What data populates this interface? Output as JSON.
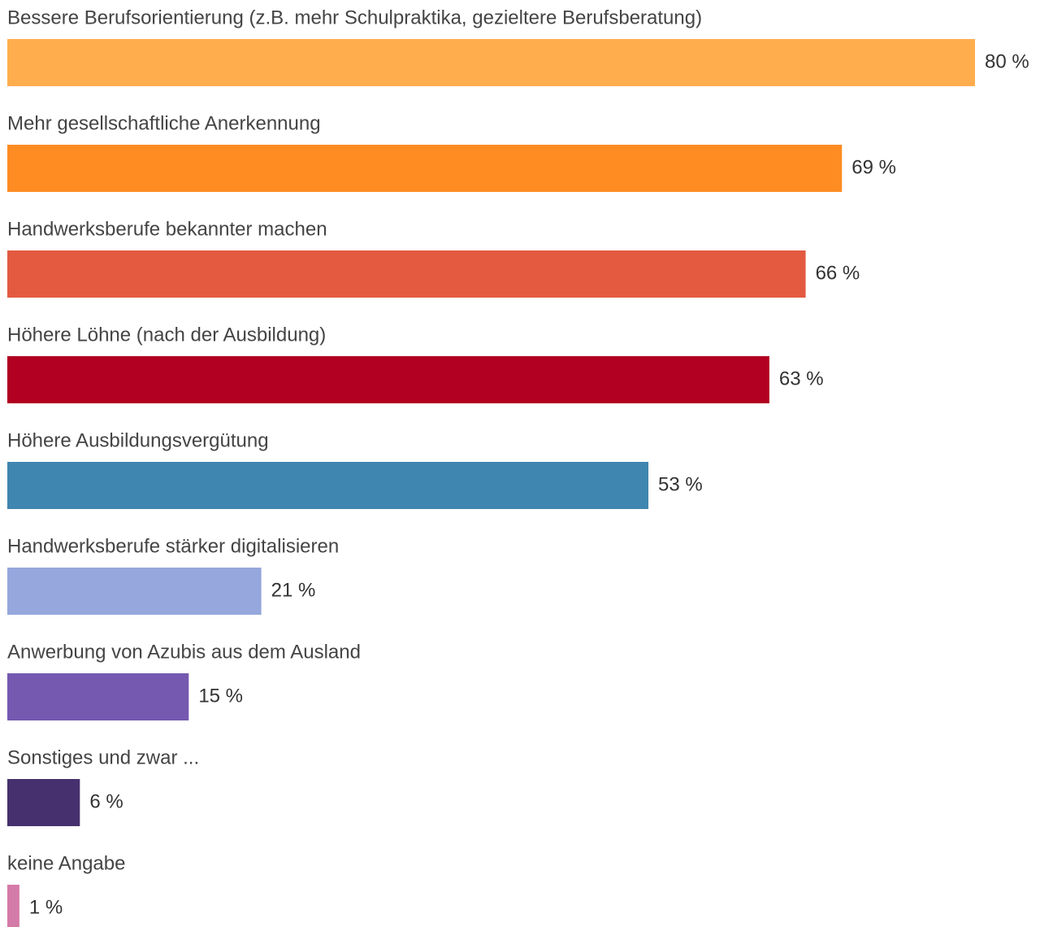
{
  "chart_data": {
    "type": "bar",
    "orientation": "horizontal",
    "categories": [
      "Bessere Berufsorientierung (z.B. mehr Schulpraktika, gezieltere Berufsberatung)",
      "Mehr gesellschaftliche Anerkennung",
      "Handwerksberufe bekannter machen",
      "Höhere Löhne (nach der Ausbildung)",
      "Höhere Ausbildungsvergütung",
      "Handwerksberufe stärker digitalisieren",
      "Anwerbung von Azubis aus dem Ausland",
      "Sonstiges und zwar ...",
      "keine Angabe"
    ],
    "values": [
      80,
      69,
      66,
      63,
      53,
      21,
      15,
      6,
      1
    ],
    "value_labels": [
      "80 %",
      "69 %",
      "66 %",
      "63 %",
      "53 %",
      "21 %",
      "15 %",
      "6 %",
      "1 %"
    ],
    "colors": [
      "#ffad4d",
      "#fe8c22",
      "#e35a41",
      "#b10021",
      "#3f86b0",
      "#95a7dc",
      "#7558b0",
      "#46306e",
      "#d47aa8"
    ]
  }
}
